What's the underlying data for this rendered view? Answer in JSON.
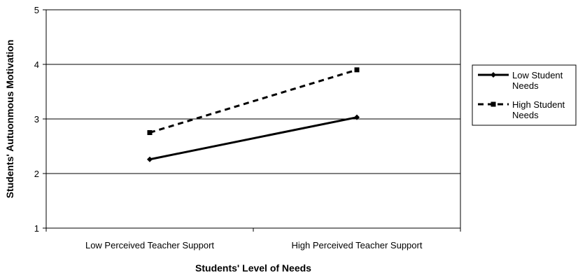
{
  "chart_data": {
    "type": "line",
    "categories": [
      "Low Perceived Teacher Support",
      "High Perceived Teacher Support"
    ],
    "series": [
      {
        "name": "Low Student Needs",
        "values": [
          2.26,
          3.03
        ],
        "style": "solid",
        "marker": "diamond",
        "color": "#000000"
      },
      {
        "name": "High Student Needs",
        "values": [
          2.75,
          3.9
        ],
        "style": "dashed",
        "marker": "square",
        "color": "#000000"
      }
    ],
    "xlabel": "Students' Level of Needs",
    "ylabel": "Students' Autuonmous Motivation",
    "ylim": [
      1,
      5
    ],
    "yticks": [
      "1",
      "2",
      "3",
      "4",
      "5"
    ],
    "grid": true,
    "legend_position": "right"
  }
}
